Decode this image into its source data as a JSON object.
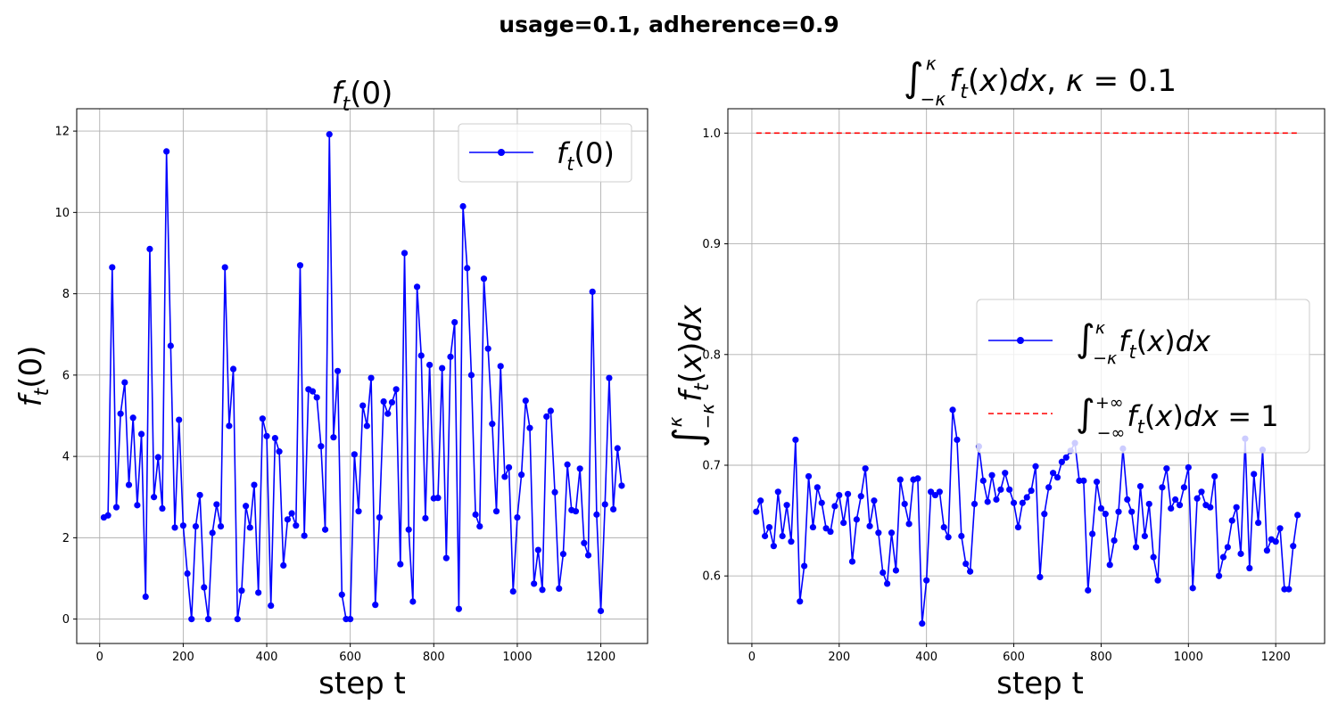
{
  "figure": {
    "suptitle": "usage=0.1, adherence=0.9"
  },
  "colors": {
    "series_blue": "#0000ff",
    "reference_red": "#ff0000",
    "grid": "#b0b0b0"
  },
  "chart_data": [
    {
      "type": "line",
      "title": "f_t(0)",
      "xlabel": "step t",
      "ylabel": "f_t(0)",
      "xlim": [
        -55,
        1312
      ],
      "ylim": [
        -0.6,
        12.55
      ],
      "xticks": [
        0,
        200,
        400,
        600,
        800,
        1000,
        1200
      ],
      "yticks": [
        0,
        2,
        4,
        6,
        8,
        10,
        12
      ],
      "grid": true,
      "legend_position": "upper right",
      "series": [
        {
          "name": "f_t(0)",
          "style": "line-with-dot-markers",
          "x": [
            10,
            20,
            30,
            40,
            50,
            60,
            70,
            80,
            90,
            100,
            110,
            120,
            130,
            140,
            150,
            160,
            170,
            180,
            190,
            200,
            210,
            220,
            230,
            240,
            250,
            260,
            270,
            280,
            290,
            300,
            310,
            320,
            330,
            340,
            350,
            360,
            370,
            380,
            390,
            400,
            410,
            420,
            430,
            440,
            450,
            460,
            470,
            480,
            490,
            500,
            510,
            520,
            530,
            540,
            550,
            560,
            570,
            580,
            590,
            600,
            610,
            620,
            630,
            640,
            650,
            660,
            670,
            680,
            690,
            700,
            710,
            720,
            730,
            740,
            750,
            760,
            770,
            780,
            790,
            800,
            810,
            820,
            830,
            840,
            850,
            860,
            870,
            880,
            890,
            900,
            910,
            920,
            930,
            940,
            950,
            960,
            970,
            980,
            990,
            1000,
            1010,
            1020,
            1030,
            1040,
            1050,
            1060,
            1070,
            1080,
            1090,
            1100,
            1110,
            1120,
            1130,
            1140,
            1150,
            1160,
            1170,
            1180,
            1190,
            1200,
            1210,
            1220,
            1230,
            1240,
            1250
          ],
          "y": [
            2.5,
            2.55,
            8.65,
            2.75,
            5.05,
            5.82,
            3.3,
            4.95,
            2.8,
            4.55,
            0.55,
            9.1,
            3.0,
            3.98,
            2.72,
            11.5,
            6.72,
            2.25,
            4.9,
            2.3,
            1.12,
            0.0,
            2.28,
            3.05,
            0.78,
            0.0,
            2.12,
            2.82,
            2.28,
            8.65,
            4.75,
            6.15,
            0.0,
            0.7,
            2.78,
            2.25,
            3.3,
            0.65,
            4.93,
            4.5,
            0.33,
            4.45,
            4.12,
            1.32,
            2.45,
            2.6,
            2.3,
            8.7,
            2.05,
            5.65,
            5.6,
            5.45,
            4.25,
            2.2,
            11.92,
            4.47,
            6.1,
            0.6,
            0.0,
            0.0,
            4.05,
            2.65,
            5.25,
            4.75,
            5.93,
            0.35,
            2.5,
            5.35,
            5.05,
            5.33,
            5.65,
            1.35,
            9.0,
            2.2,
            0.43,
            8.17,
            6.48,
            2.48,
            6.25,
            2.97,
            2.98,
            6.17,
            1.5,
            6.45,
            7.3,
            0.25,
            10.15,
            8.63,
            6.0,
            2.57,
            2.28,
            8.37,
            6.65,
            4.8,
            2.65,
            6.22,
            3.5,
            3.73,
            0.68,
            2.5,
            3.55,
            5.37,
            4.7,
            0.87,
            1.7,
            0.72,
            4.98,
            5.12,
            3.12,
            0.75,
            1.6,
            3.8,
            2.68,
            2.65,
            3.7,
            1.87,
            1.57,
            8.05,
            2.57,
            0.2,
            2.82,
            5.93,
            2.7,
            4.2,
            3.28
          ]
        }
      ]
    },
    {
      "type": "line",
      "title": "∫_{-κ}^{κ} f_t(x)dx,  κ = 0.1",
      "xlabel": "step t",
      "ylabel": "∫_{-κ}^{κ} f_t(x)dx",
      "xlim": [
        -55,
        1312
      ],
      "ylim": [
        0.539,
        1.022
      ],
      "xticks": [
        0,
        200,
        400,
        600,
        800,
        1000,
        1200
      ],
      "yticks": [
        0.6,
        0.7,
        0.8,
        0.9,
        1.0
      ],
      "grid": true,
      "legend_position": "center right",
      "series": [
        {
          "name": "∫_{-κ}^{κ} f_t(x)dx",
          "style": "line-with-dot-markers",
          "x": [
            10,
            20,
            30,
            40,
            50,
            60,
            70,
            80,
            90,
            100,
            110,
            120,
            130,
            140,
            150,
            160,
            170,
            180,
            190,
            200,
            210,
            220,
            230,
            240,
            250,
            260,
            270,
            280,
            290,
            300,
            310,
            320,
            330,
            340,
            350,
            360,
            370,
            380,
            390,
            400,
            410,
            420,
            430,
            440,
            450,
            460,
            470,
            480,
            490,
            500,
            510,
            520,
            530,
            540,
            550,
            560,
            570,
            580,
            590,
            600,
            610,
            620,
            630,
            640,
            650,
            660,
            670,
            680,
            690,
            700,
            710,
            720,
            730,
            740,
            750,
            760,
            770,
            780,
            790,
            800,
            810,
            820,
            830,
            840,
            850,
            860,
            870,
            880,
            890,
            900,
            910,
            920,
            930,
            940,
            950,
            960,
            970,
            980,
            990,
            1000,
            1010,
            1020,
            1030,
            1040,
            1050,
            1060,
            1070,
            1080,
            1090,
            1100,
            1110,
            1120,
            1130,
            1140,
            1150,
            1160,
            1170,
            1180,
            1190,
            1200,
            1210,
            1220,
            1230,
            1240,
            1250
          ],
          "y": [
            0.658,
            0.668,
            0.636,
            0.644,
            0.627,
            0.676,
            0.636,
            0.664,
            0.631,
            0.723,
            0.577,
            0.609,
            0.69,
            0.644,
            0.68,
            0.666,
            0.643,
            0.64,
            0.663,
            0.673,
            0.648,
            0.674,
            0.613,
            0.651,
            0.672,
            0.697,
            0.645,
            0.668,
            0.639,
            0.603,
            0.593,
            0.639,
            0.605,
            0.687,
            0.665,
            0.647,
            0.687,
            0.688,
            0.557,
            0.596,
            0.676,
            0.673,
            0.676,
            0.644,
            0.635,
            0.75,
            0.723,
            0.636,
            0.611,
            0.604,
            0.665,
            0.717,
            0.686,
            0.667,
            0.691,
            0.669,
            0.678,
            0.693,
            0.678,
            0.666,
            0.644,
            0.666,
            0.671,
            0.677,
            0.699,
            0.599,
            0.656,
            0.68,
            0.693,
            0.689,
            0.703,
            0.707,
            0.713,
            0.72,
            0.686,
            0.686,
            0.587,
            0.638,
            0.685,
            0.661,
            0.656,
            0.61,
            0.632,
            0.658,
            0.715,
            0.669,
            0.658,
            0.626,
            0.681,
            0.636,
            0.665,
            0.617,
            0.596,
            0.68,
            0.697,
            0.661,
            0.669,
            0.664,
            0.68,
            0.698,
            0.589,
            0.67,
            0.676,
            0.664,
            0.662,
            0.69,
            0.6,
            0.617,
            0.626,
            0.65,
            0.662,
            0.62,
            0.724,
            0.607,
            0.692,
            0.648,
            0.714,
            0.623,
            0.633,
            0.631,
            0.643,
            0.588,
            0.588,
            0.627,
            0.655
          ]
        },
        {
          "name": "∫_{-∞}^{+∞} f_t(x)dx = 1",
          "style": "dashed",
          "x": [
            10,
            1250
          ],
          "y": [
            1.0,
            1.0
          ]
        }
      ]
    }
  ]
}
